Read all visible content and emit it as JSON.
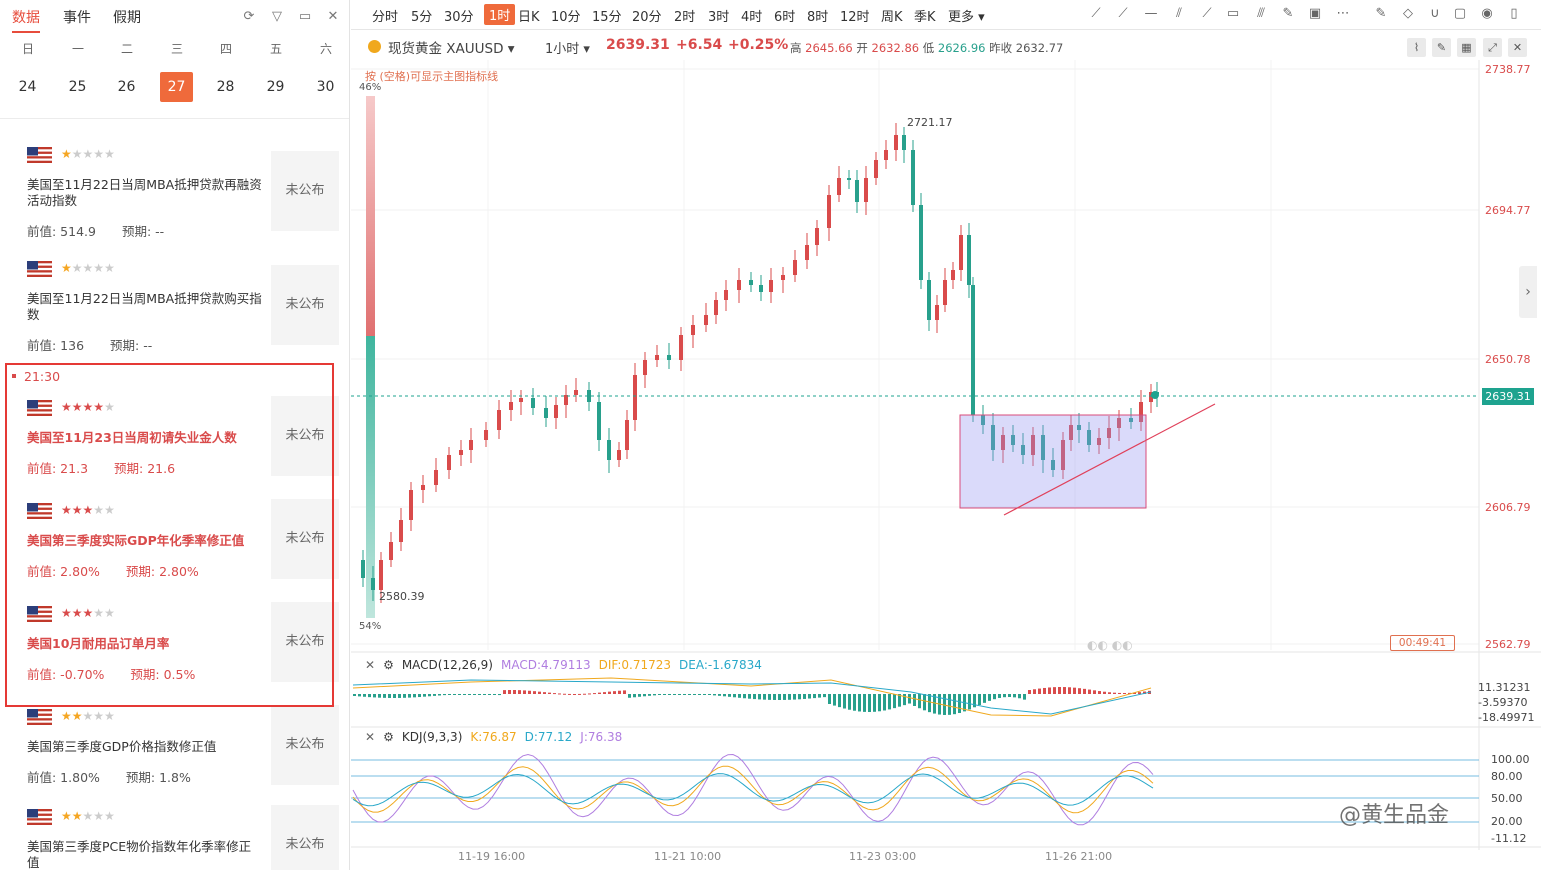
{
  "left": {
    "tabs": [
      {
        "label": "数据"
      },
      {
        "label": "事件"
      },
      {
        "label": "假期"
      }
    ],
    "weekdays": [
      "日",
      "一",
      "二",
      "三",
      "四",
      "五",
      "六"
    ],
    "days": [
      "24",
      "25",
      "26",
      "27",
      "28",
      "29",
      "30"
    ],
    "selected_day": "27",
    "highlight_time": "21:30",
    "events": [
      {
        "stars": 1,
        "title": "美国至11月22日当周MBA抵押贷款再融资活动指数",
        "prev_label": "前值:",
        "prev": "514.9",
        "fcst_label": "预期:",
        "fcst": "--",
        "status": "未公布",
        "hi": false
      },
      {
        "stars": 1,
        "title": "美国至11月22日当周MBA抵押贷款购买指数",
        "prev_label": "前值:",
        "prev": "136",
        "fcst_label": "预期:",
        "fcst": "--",
        "status": "未公布",
        "hi": false
      },
      {
        "stars": 4,
        "title": "美国至11月23日当周初请失业金人数",
        "prev_label": "前值:",
        "prev": "21.3",
        "fcst_label": "预期:",
        "fcst": "21.6",
        "status": "未公布",
        "hi": true
      },
      {
        "stars": 3,
        "title": "美国第三季度实际GDP年化季率修正值",
        "prev_label": "前值:",
        "prev": "2.80%",
        "fcst_label": "预期:",
        "fcst": "2.80%",
        "status": "未公布",
        "hi": true
      },
      {
        "stars": 3,
        "title": "美国10月耐用品订单月率",
        "prev_label": "前值:",
        "prev": "-0.70%",
        "fcst_label": "预期:",
        "fcst": "0.5%",
        "status": "未公布",
        "hi": true
      },
      {
        "stars": 2,
        "title": "美国第三季度GDP价格指数修正值",
        "prev_label": "前值:",
        "prev": "1.80%",
        "fcst_label": "预期:",
        "fcst": "1.8%",
        "status": "未公布",
        "hi": false
      },
      {
        "stars": 2,
        "title": "美国第三季度PCE物价指数年化季率修正值",
        "prev_label": "",
        "prev": "",
        "fcst_label": "",
        "fcst": "",
        "status": "未公布",
        "hi": false
      }
    ]
  },
  "toolbar": {
    "intervals": [
      "分时",
      "5分",
      "30分",
      "1时",
      "日K",
      "10分",
      "15分",
      "20分",
      "2时",
      "3时",
      "4时",
      "6时",
      "8时",
      "12时",
      "周K",
      "季K",
      "更多"
    ],
    "active_interval": "1时"
  },
  "quote": {
    "symbol": "现货黄金 XAUUSD",
    "interval": "1小时",
    "price": "2639.31",
    "change": "+6.54",
    "change_pct": "+0.25%",
    "high_label": "高",
    "high": "2645.66",
    "open_label": "开",
    "open": "2632.86",
    "low_label": "低",
    "low": "2626.96",
    "prev_close_label": "昨收",
    "prev_close": "2632.77"
  },
  "chart": {
    "hint": "按 (空格)可显示主图指标线",
    "price_axis": [
      "2738.77",
      "2694.77",
      "2650.78",
      "2606.79",
      "2562.79"
    ],
    "last_price_tag": "2639.31",
    "annotation_high": "2721.17",
    "annotation_low": "2580.39",
    "volume_top_pct": "46%",
    "volume_bottom_pct": "54%",
    "countdown": "00:49:41",
    "x_ticks": [
      "11-19 16:00",
      "11-21 10:00",
      "11-23 03:00",
      "11-26 21:00"
    ],
    "up_color": "#d94b4b",
    "down_color": "#28a08c"
  },
  "macd": {
    "name": "MACD(12,26,9)",
    "macd": "MACD:4.79113",
    "dif": "DIF:0.71723",
    "dea": "DEA:-1.67834",
    "axis": [
      "11.31231",
      "-3.59370",
      "-18.49971"
    ]
  },
  "kdj": {
    "name": "KDJ(9,3,3)",
    "k": "K:76.87",
    "d": "D:77.12",
    "j": "J:76.38",
    "axis": [
      "100.00",
      "80.00",
      "50.00",
      "20.00",
      "-11.12"
    ]
  },
  "watermark": "@黄生品金"
}
